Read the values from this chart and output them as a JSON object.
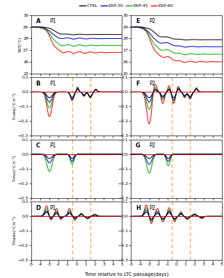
{
  "colors": {
    "CTRL": "#000000",
    "EXP-30": "#0000CD",
    "EXP-45": "#00AA00",
    "EXP-60": "#FF0000"
  },
  "legend_labels": [
    "CTRL",
    "EXP-30",
    "EXP-45",
    "EXP-60"
  ],
  "vlines": [
    -0.5,
    1.5
  ],
  "ylabels": [
    "SST(°C)",
    "T-rate(°C·h⁻¹)",
    "T-mix(°C·h⁻¹)",
    "T-hadv(°C·h⁻¹)"
  ],
  "sst_ylim": [
    25,
    30
  ],
  "rate_ylim": [
    -0.3,
    0.1
  ],
  "xlabel": "Time relative to LTC passage(days)",
  "dashed_color": "#FFA040",
  "background": "#FFFFFF",
  "sst_yticks": [
    25,
    26,
    27,
    28,
    29,
    30
  ],
  "rate_yticks": [
    -0.3,
    -0.2,
    -0.1,
    0,
    0.1
  ],
  "xticks": [
    -5,
    -4,
    -3,
    -2,
    -1,
    0,
    1,
    2,
    3,
    4,
    5
  ]
}
